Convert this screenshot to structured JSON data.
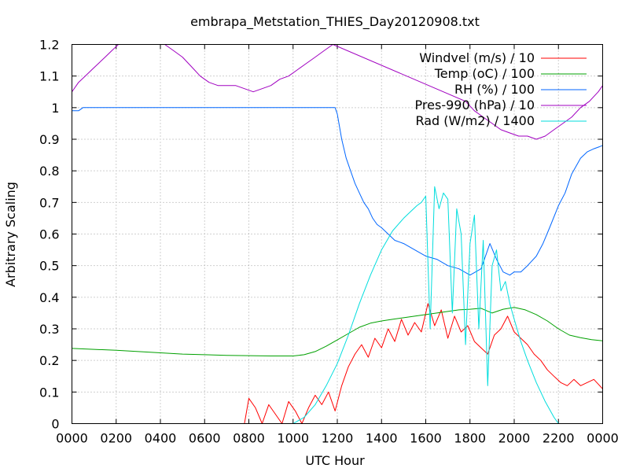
{
  "chart_data": {
    "type": "line",
    "title": "embrapa_Metstation_THIES_Day20120908.txt",
    "xlabel": "UTC Hour",
    "ylabel": "Arbitrary Scaling",
    "xlim": [
      0,
      24
    ],
    "ylim": [
      0,
      1.2
    ],
    "x_ticks": [
      {
        "value": 0,
        "label": "0000"
      },
      {
        "value": 2,
        "label": "0200"
      },
      {
        "value": 4,
        "label": "0400"
      },
      {
        "value": 6,
        "label": "0600"
      },
      {
        "value": 8,
        "label": "0800"
      },
      {
        "value": 10,
        "label": "1000"
      },
      {
        "value": 12,
        "label": "1200"
      },
      {
        "value": 14,
        "label": "1400"
      },
      {
        "value": 16,
        "label": "1600"
      },
      {
        "value": 18,
        "label": "1800"
      },
      {
        "value": 20,
        "label": "2000"
      },
      {
        "value": 22,
        "label": "2200"
      },
      {
        "value": 24,
        "label": "0000"
      }
    ],
    "y_ticks": [
      {
        "value": 0,
        "label": "0"
      },
      {
        "value": 0.1,
        "label": "0.1"
      },
      {
        "value": 0.2,
        "label": "0.2"
      },
      {
        "value": 0.3,
        "label": "0.3"
      },
      {
        "value": 0.4,
        "label": "0.4"
      },
      {
        "value": 0.5,
        "label": "0.5"
      },
      {
        "value": 0.6,
        "label": "0.6"
      },
      {
        "value": 0.7,
        "label": "0.7"
      },
      {
        "value": 0.8,
        "label": "0.8"
      },
      {
        "value": 0.9,
        "label": "0.9"
      },
      {
        "value": 1.0,
        "label": "1"
      },
      {
        "value": 1.1,
        "label": "1.1"
      },
      {
        "value": 1.2,
        "label": "1.2"
      }
    ],
    "grid": true,
    "legend_position": "top-right",
    "series": [
      {
        "name": "Windvel (m/s) / 10",
        "color": "#ff0000",
        "x": [
          7.8,
          8.0,
          8.3,
          8.6,
          8.9,
          9.2,
          9.5,
          9.8,
          10.1,
          10.4,
          10.7,
          11.0,
          11.3,
          11.6,
          11.9,
          12.2,
          12.5,
          12.8,
          13.1,
          13.4,
          13.7,
          14.0,
          14.3,
          14.6,
          14.9,
          15.2,
          15.5,
          15.8,
          16.1,
          16.4,
          16.7,
          17.0,
          17.3,
          17.6,
          17.9,
          18.2,
          18.5,
          18.8,
          19.1,
          19.4,
          19.7,
          20.0,
          20.3,
          20.6,
          20.9,
          21.2,
          21.5,
          21.8,
          22.1,
          22.4,
          22.7,
          23.0,
          23.3,
          23.6,
          24.0
        ],
        "y": [
          0.0,
          0.08,
          0.05,
          0.0,
          0.06,
          0.03,
          0.0,
          0.07,
          0.04,
          0.0,
          0.05,
          0.09,
          0.06,
          0.1,
          0.04,
          0.12,
          0.18,
          0.22,
          0.25,
          0.21,
          0.27,
          0.24,
          0.3,
          0.26,
          0.33,
          0.28,
          0.32,
          0.29,
          0.38,
          0.31,
          0.36,
          0.27,
          0.34,
          0.29,
          0.31,
          0.26,
          0.24,
          0.22,
          0.28,
          0.3,
          0.34,
          0.29,
          0.27,
          0.25,
          0.22,
          0.2,
          0.17,
          0.15,
          0.13,
          0.12,
          0.14,
          0.12,
          0.13,
          0.14,
          0.11
        ]
      },
      {
        "name": "Temp (oC) / 100",
        "color": "#00a000",
        "x": [
          0,
          1,
          2,
          3,
          4,
          5,
          6,
          7,
          8,
          9,
          10,
          10.5,
          11,
          11.5,
          12,
          12.5,
          13,
          13.5,
          14,
          14.5,
          15,
          15.5,
          16,
          16.5,
          17,
          17.5,
          18,
          18.5,
          19,
          19.5,
          20,
          20.5,
          21,
          21.5,
          22,
          22.5,
          23,
          23.5,
          24
        ],
        "y": [
          0.238,
          0.235,
          0.232,
          0.228,
          0.224,
          0.22,
          0.218,
          0.216,
          0.215,
          0.214,
          0.214,
          0.218,
          0.228,
          0.245,
          0.265,
          0.285,
          0.305,
          0.318,
          0.325,
          0.33,
          0.335,
          0.34,
          0.345,
          0.35,
          0.355,
          0.36,
          0.362,
          0.365,
          0.35,
          0.362,
          0.368,
          0.36,
          0.345,
          0.325,
          0.3,
          0.28,
          0.272,
          0.266,
          0.262
        ]
      },
      {
        "name": "RH (%) / 100",
        "color": "#0066ff",
        "x": [
          0,
          0.3,
          0.5,
          1,
          2,
          4,
          6,
          8,
          10,
          11,
          11.9,
          12.0,
          12.2,
          12.4,
          12.6,
          12.8,
          13.0,
          13.2,
          13.4,
          13.6,
          13.8,
          14.0,
          14.3,
          14.6,
          15.0,
          15.5,
          16.0,
          16.5,
          17.0,
          17.5,
          18.0,
          18.5,
          18.9,
          19.2,
          19.5,
          19.8,
          20.0,
          20.3,
          20.6,
          21.0,
          21.3,
          21.6,
          22.0,
          22.3,
          22.6,
          23.0,
          23.3,
          23.6,
          24.0
        ],
        "y": [
          0.99,
          0.99,
          1.0,
          1.0,
          1.0,
          1.0,
          1.0,
          1.0,
          1.0,
          1.0,
          1.0,
          0.98,
          0.9,
          0.84,
          0.8,
          0.76,
          0.73,
          0.7,
          0.68,
          0.65,
          0.63,
          0.62,
          0.6,
          0.58,
          0.57,
          0.55,
          0.53,
          0.52,
          0.5,
          0.49,
          0.47,
          0.49,
          0.57,
          0.52,
          0.48,
          0.47,
          0.48,
          0.48,
          0.5,
          0.53,
          0.57,
          0.62,
          0.69,
          0.73,
          0.79,
          0.84,
          0.86,
          0.87,
          0.88
        ]
      },
      {
        "name": "Pres-990 (hPa) / 10",
        "color": "#a000c0",
        "x": [
          0,
          0.3,
          0.6,
          0.9,
          1.2,
          1.5,
          1.8,
          2.1,
          2.4,
          3.8,
          4.2,
          4.6,
          5.0,
          5.4,
          5.8,
          6.2,
          6.6,
          7.0,
          7.4,
          7.8,
          8.2,
          8.6,
          9.0,
          9.4,
          9.8,
          10.2,
          10.6,
          11.0,
          11.4,
          11.8,
          17.8,
          18.2,
          18.6,
          19.0,
          19.4,
          19.8,
          20.2,
          20.6,
          21.0,
          21.4,
          21.8,
          22.2,
          22.6,
          23.0,
          23.4,
          23.8,
          24.0
        ],
        "y": [
          1.05,
          1.08,
          1.1,
          1.12,
          1.14,
          1.16,
          1.18,
          1.2,
          1.22,
          1.22,
          1.2,
          1.18,
          1.16,
          1.13,
          1.1,
          1.08,
          1.07,
          1.07,
          1.07,
          1.06,
          1.05,
          1.06,
          1.07,
          1.09,
          1.1,
          1.12,
          1.14,
          1.16,
          1.18,
          1.2,
          1.02,
          0.99,
          0.97,
          0.95,
          0.93,
          0.92,
          0.91,
          0.91,
          0.9,
          0.91,
          0.93,
          0.95,
          0.97,
          1.0,
          1.02,
          1.05,
          1.07
        ]
      },
      {
        "name": "Rad (W/m2) / 1400",
        "color": "#00dddd",
        "x": [
          10.0,
          10.5,
          11.0,
          11.5,
          12.0,
          12.5,
          13.0,
          13.5,
          14.0,
          14.5,
          15.0,
          15.3,
          15.6,
          15.8,
          16.0,
          16.2,
          16.4,
          16.6,
          16.8,
          17.0,
          17.2,
          17.4,
          17.6,
          17.8,
          18.0,
          18.2,
          18.4,
          18.6,
          18.8,
          19.0,
          19.2,
          19.4,
          19.6,
          19.8,
          20.0,
          20.3,
          20.6,
          21.0,
          21.4,
          21.8,
          22.0
        ],
        "y": [
          0.0,
          0.02,
          0.06,
          0.12,
          0.19,
          0.28,
          0.38,
          0.47,
          0.55,
          0.61,
          0.65,
          0.67,
          0.69,
          0.7,
          0.72,
          0.3,
          0.75,
          0.68,
          0.73,
          0.71,
          0.35,
          0.68,
          0.6,
          0.25,
          0.57,
          0.66,
          0.3,
          0.58,
          0.12,
          0.5,
          0.55,
          0.42,
          0.45,
          0.38,
          0.33,
          0.26,
          0.2,
          0.13,
          0.07,
          0.02,
          0.0
        ]
      }
    ]
  }
}
